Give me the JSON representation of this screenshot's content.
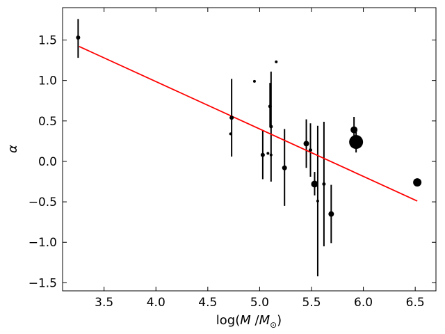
{
  "chart_data": {
    "type": "scatter",
    "title": "",
    "xlabel": "log(M /M⊙)",
    "ylabel": "α",
    "xlim": [
      3.1,
      6.7
    ],
    "ylim": [
      -1.6,
      1.9
    ],
    "xticks": [
      3.5,
      4.0,
      4.5,
      5.0,
      5.5,
      6.0,
      6.5
    ],
    "xtick_labels": [
      "3.5",
      "4.0",
      "4.5",
      "5.0",
      "5.5",
      "6.0",
      "6.5"
    ],
    "yticks": [
      -1.5,
      -1.0,
      -0.5,
      0.0,
      0.5,
      1.0,
      1.5
    ],
    "ytick_labels": [
      "−1.5",
      "−1.0",
      "−0.5",
      "0.0",
      "0.5",
      "1.0",
      "1.5"
    ],
    "grid": false,
    "legend": "none",
    "points_color": "#000000",
    "fit_color": "#ff0000",
    "points": [
      {
        "x": 3.25,
        "y": 1.53,
        "yerr_low": 1.28,
        "yerr_high": 1.76,
        "size": 3
      },
      {
        "x": 4.72,
        "y": 0.34,
        "size": 2
      },
      {
        "x": 4.73,
        "y": 0.54,
        "yerr_low": 0.06,
        "yerr_high": 1.02,
        "size": 3
      },
      {
        "x": 4.95,
        "y": 0.99,
        "size": 2
      },
      {
        "x": 5.03,
        "y": 0.08,
        "yerr_low": -0.22,
        "yerr_high": 0.38,
        "size": 3
      },
      {
        "x": 5.08,
        "y": 0.1,
        "size": 2
      },
      {
        "x": 5.1,
        "y": 0.68,
        "yerr_low": 0.43,
        "yerr_high": 0.97,
        "size": 2.5
      },
      {
        "x": 5.11,
        "y": 0.43,
        "yerr_low": -0.25,
        "yerr_high": 1.11,
        "size": 2.5
      },
      {
        "x": 5.11,
        "y": 0.08,
        "size": 2
      },
      {
        "x": 5.16,
        "y": 1.23,
        "size": 2
      },
      {
        "x": 5.24,
        "y": -0.08,
        "yerr_low": -0.55,
        "yerr_high": 0.4,
        "size": 3.5
      },
      {
        "x": 5.45,
        "y": 0.22,
        "yerr_low": -0.08,
        "yerr_high": 0.52,
        "size": 4
      },
      {
        "x": 5.49,
        "y": 0.14,
        "yerr_low": -0.19,
        "yerr_high": 0.47,
        "size": 2.5
      },
      {
        "x": 5.53,
        "y": -0.28,
        "yerr_low": -0.42,
        "yerr_high": -0.13,
        "size": 5
      },
      {
        "x": 5.56,
        "y": -0.49,
        "yerr_low": -1.42,
        "yerr_high": 0.44,
        "size": 2
      },
      {
        "x": 5.62,
        "y": -0.28,
        "yerr_low": -1.05,
        "yerr_high": 0.49,
        "size": 2.5
      },
      {
        "x": 5.69,
        "y": -0.65,
        "yerr_low": -1.01,
        "yerr_high": -0.29,
        "size": 4
      },
      {
        "x": 5.91,
        "y": 0.39,
        "yerr_low": 0.23,
        "yerr_high": 0.55,
        "size": 5
      },
      {
        "x": 5.93,
        "y": 0.24,
        "yerr_low": 0.11,
        "yerr_high": 0.37,
        "size": 10
      },
      {
        "x": 6.52,
        "y": -0.26,
        "size": 6
      }
    ],
    "fit_line": {
      "x": [
        3.26,
        6.52
      ],
      "y": [
        1.42,
        -0.49
      ]
    }
  }
}
